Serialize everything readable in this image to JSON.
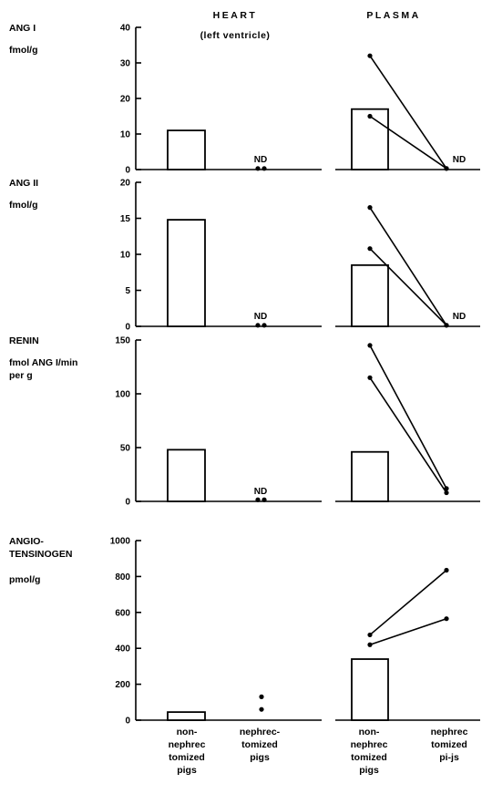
{
  "chart_data": {
    "type": "bar",
    "columns": [
      {
        "title": "HEART",
        "subtitle": "(left ventricle)"
      },
      {
        "title": "PLASMA",
        "subtitle": ""
      }
    ],
    "groups": [
      {
        "lines": [
          "non-",
          "nephrec",
          "tomized",
          "pigs"
        ]
      },
      {
        "lines": [
          "nephrec-",
          "tomized",
          "pigs"
        ]
      },
      {
        "lines": [
          "non-",
          "nephrec",
          "tomized",
          "pigs"
        ]
      },
      {
        "lines": [
          "nephrec",
          "tomized",
          "pi-js"
        ]
      }
    ],
    "nd_label": "ND",
    "panels": [
      {
        "label_lines": [
          "ANG I",
          "fmol/g"
        ],
        "ylim": [
          0,
          40
        ],
        "ticks": [
          0,
          10,
          20,
          30,
          40
        ],
        "heart": {
          "bar": 11,
          "nephrectomized_points": [
            0.3,
            0.3
          ],
          "nd": true
        },
        "plasma": {
          "bar": 17,
          "pairs": [
            [
              32,
              0.3
            ],
            [
              15,
              0.3
            ]
          ],
          "nd": true
        }
      },
      {
        "label_lines": [
          "ANG II",
          "fmol/g"
        ],
        "ylim": [
          0,
          20
        ],
        "ticks": [
          0,
          5,
          10,
          15,
          20
        ],
        "heart": {
          "bar": 14.8,
          "nephrectomized_points": [
            0.15,
            0.15
          ],
          "nd": true
        },
        "plasma": {
          "bar": 8.5,
          "pairs": [
            [
              16.5,
              0.15
            ],
            [
              10.8,
              0.15
            ]
          ],
          "nd": true
        }
      },
      {
        "label_lines": [
          "RENIN",
          "fmol ANG I/min",
          "per g"
        ],
        "ylim": [
          0,
          150
        ],
        "ticks": [
          0,
          50,
          100,
          150
        ],
        "heart": {
          "bar": 48,
          "nephrectomized_points": [
            1.5,
            1.5
          ],
          "nd": true
        },
        "plasma": {
          "bar": 46,
          "pairs": [
            [
              145,
              12
            ],
            [
              115,
              8
            ]
          ],
          "nd": false
        }
      },
      {
        "label_lines": [
          "ANGIO-",
          "TENSINOGEN",
          "pmol/g"
        ],
        "ylim": [
          0,
          1000
        ],
        "ticks": [
          0,
          200,
          400,
          600,
          800,
          1000
        ],
        "heart": {
          "bar": 45,
          "nephrectomized_points": [
            130,
            60
          ],
          "nd": false
        },
        "plasma": {
          "bar": 340,
          "pairs": [
            [
              420,
              565
            ],
            [
              475,
              835
            ]
          ],
          "nd": false
        }
      }
    ]
  }
}
